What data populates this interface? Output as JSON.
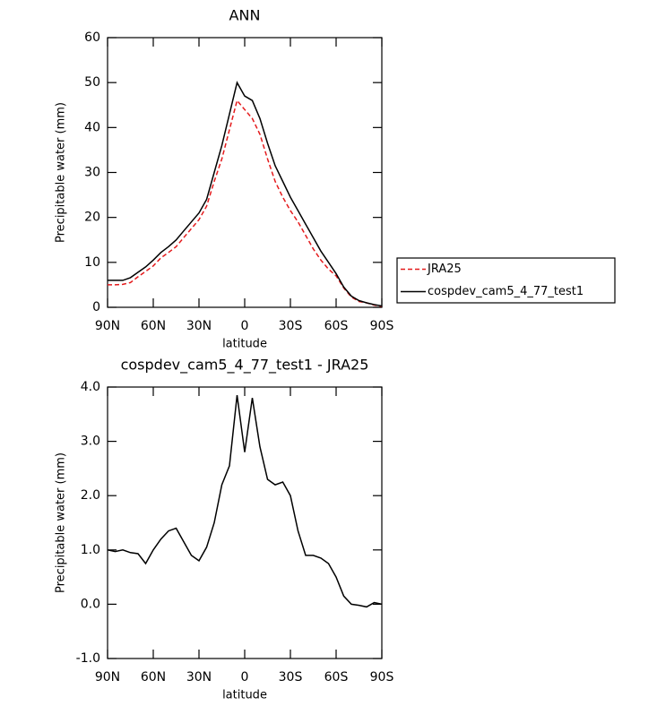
{
  "chart_data": [
    {
      "type": "line",
      "title": "ANN",
      "xlabel": "latitude",
      "ylabel": "Precipitable water (mm)",
      "x": [
        90,
        85,
        80,
        75,
        70,
        65,
        60,
        55,
        50,
        45,
        40,
        35,
        30,
        25,
        20,
        15,
        10,
        5,
        0,
        -5,
        -10,
        -15,
        -20,
        -25,
        -30,
        -35,
        -40,
        -45,
        -50,
        -55,
        -60,
        -65,
        -70,
        -75,
        -80,
        -85,
        -90
      ],
      "series": [
        {
          "name": "JRA25",
          "color": "#e41a1c",
          "linestyle": "dashed",
          "values": [
            5.0,
            5.0,
            5.1,
            5.5,
            6.8,
            8.0,
            9.2,
            11.0,
            12.2,
            13.5,
            15.5,
            17.5,
            19.5,
            22.5,
            28.0,
            33.0,
            39.5,
            46.0,
            44.0,
            42.0,
            38.5,
            33.0,
            28.0,
            24.5,
            21.5,
            19.0,
            16.0,
            13.0,
            10.5,
            8.5,
            7.0,
            4.3,
            2.3,
            1.3,
            1.0,
            0.5,
            0.2
          ]
        },
        {
          "name": "cospdev_cam5_4_77_test1",
          "color": "#000000",
          "linestyle": "solid",
          "values": [
            6.0,
            6.0,
            6.0,
            6.6,
            7.8,
            9.0,
            10.5,
            12.2,
            13.5,
            15.0,
            17.0,
            19.0,
            21.0,
            24.0,
            30.0,
            36.0,
            43.0,
            50.0,
            47.0,
            46.0,
            42.0,
            36.5,
            31.5,
            28.0,
            24.5,
            21.5,
            18.5,
            15.5,
            12.5,
            10.0,
            7.5,
            4.5,
            2.5,
            1.5,
            1.0,
            0.6,
            0.3
          ]
        }
      ],
      "xlim": [
        90,
        -90
      ],
      "xticks": [
        {
          "value": 90,
          "label": "90N"
        },
        {
          "value": 60,
          "label": "60N"
        },
        {
          "value": 30,
          "label": "30N"
        },
        0,
        {
          "value": -30,
          "label": "30S"
        },
        {
          "value": -60,
          "label": "60S"
        },
        {
          "value": -90,
          "label": "90S"
        }
      ],
      "ylim": [
        0,
        60
      ],
      "yticks": [
        0,
        10,
        20,
        30,
        40,
        50,
        60
      ],
      "legend": "right"
    },
    {
      "type": "line",
      "title": "cospdev_cam5_4_77_test1 - JRA25",
      "xlabel": "latitude",
      "ylabel": "Precipitable water (mm)",
      "x": [
        90,
        85,
        80,
        75,
        70,
        65,
        60,
        55,
        50,
        45,
        40,
        35,
        30,
        25,
        20,
        15,
        10,
        5,
        0,
        -5,
        -10,
        -15,
        -20,
        -25,
        -30,
        -35,
        -40,
        -45,
        -50,
        -55,
        -60,
        -65,
        -70,
        -75,
        -80,
        -85,
        -90
      ],
      "series": [
        {
          "color": "#000000",
          "linestyle": "solid",
          "values": [
            1.0,
            0.97,
            1.0,
            0.95,
            0.93,
            0.75,
            1.0,
            1.2,
            1.35,
            1.4,
            1.15,
            0.9,
            0.8,
            1.05,
            1.5,
            2.2,
            2.55,
            3.85,
            2.8,
            3.8,
            2.9,
            2.3,
            2.2,
            2.25,
            2.0,
            1.35,
            0.9,
            0.9,
            0.85,
            0.75,
            0.5,
            0.15,
            0.0,
            -0.02,
            -0.05,
            0.03,
            0.0
          ]
        }
      ],
      "xlim": [
        90,
        -90
      ],
      "xticks": [
        {
          "value": 90,
          "label": "90N"
        },
        {
          "value": 60,
          "label": "60N"
        },
        {
          "value": 30,
          "label": "30N"
        },
        0,
        {
          "value": -30,
          "label": "30S"
        },
        {
          "value": -60,
          "label": "60S"
        },
        {
          "value": -90,
          "label": "90S"
        }
      ],
      "ylim": [
        -1,
        4
      ],
      "yticks": [
        {
          "value": -1,
          "label": "-1.0"
        },
        {
          "value": 0,
          "label": "0.0"
        },
        {
          "value": 1,
          "label": "1.0"
        },
        {
          "value": 2,
          "label": "2.0"
        },
        {
          "value": 3,
          "label": "3.0"
        },
        {
          "value": 4,
          "label": "4.0"
        }
      ]
    }
  ]
}
